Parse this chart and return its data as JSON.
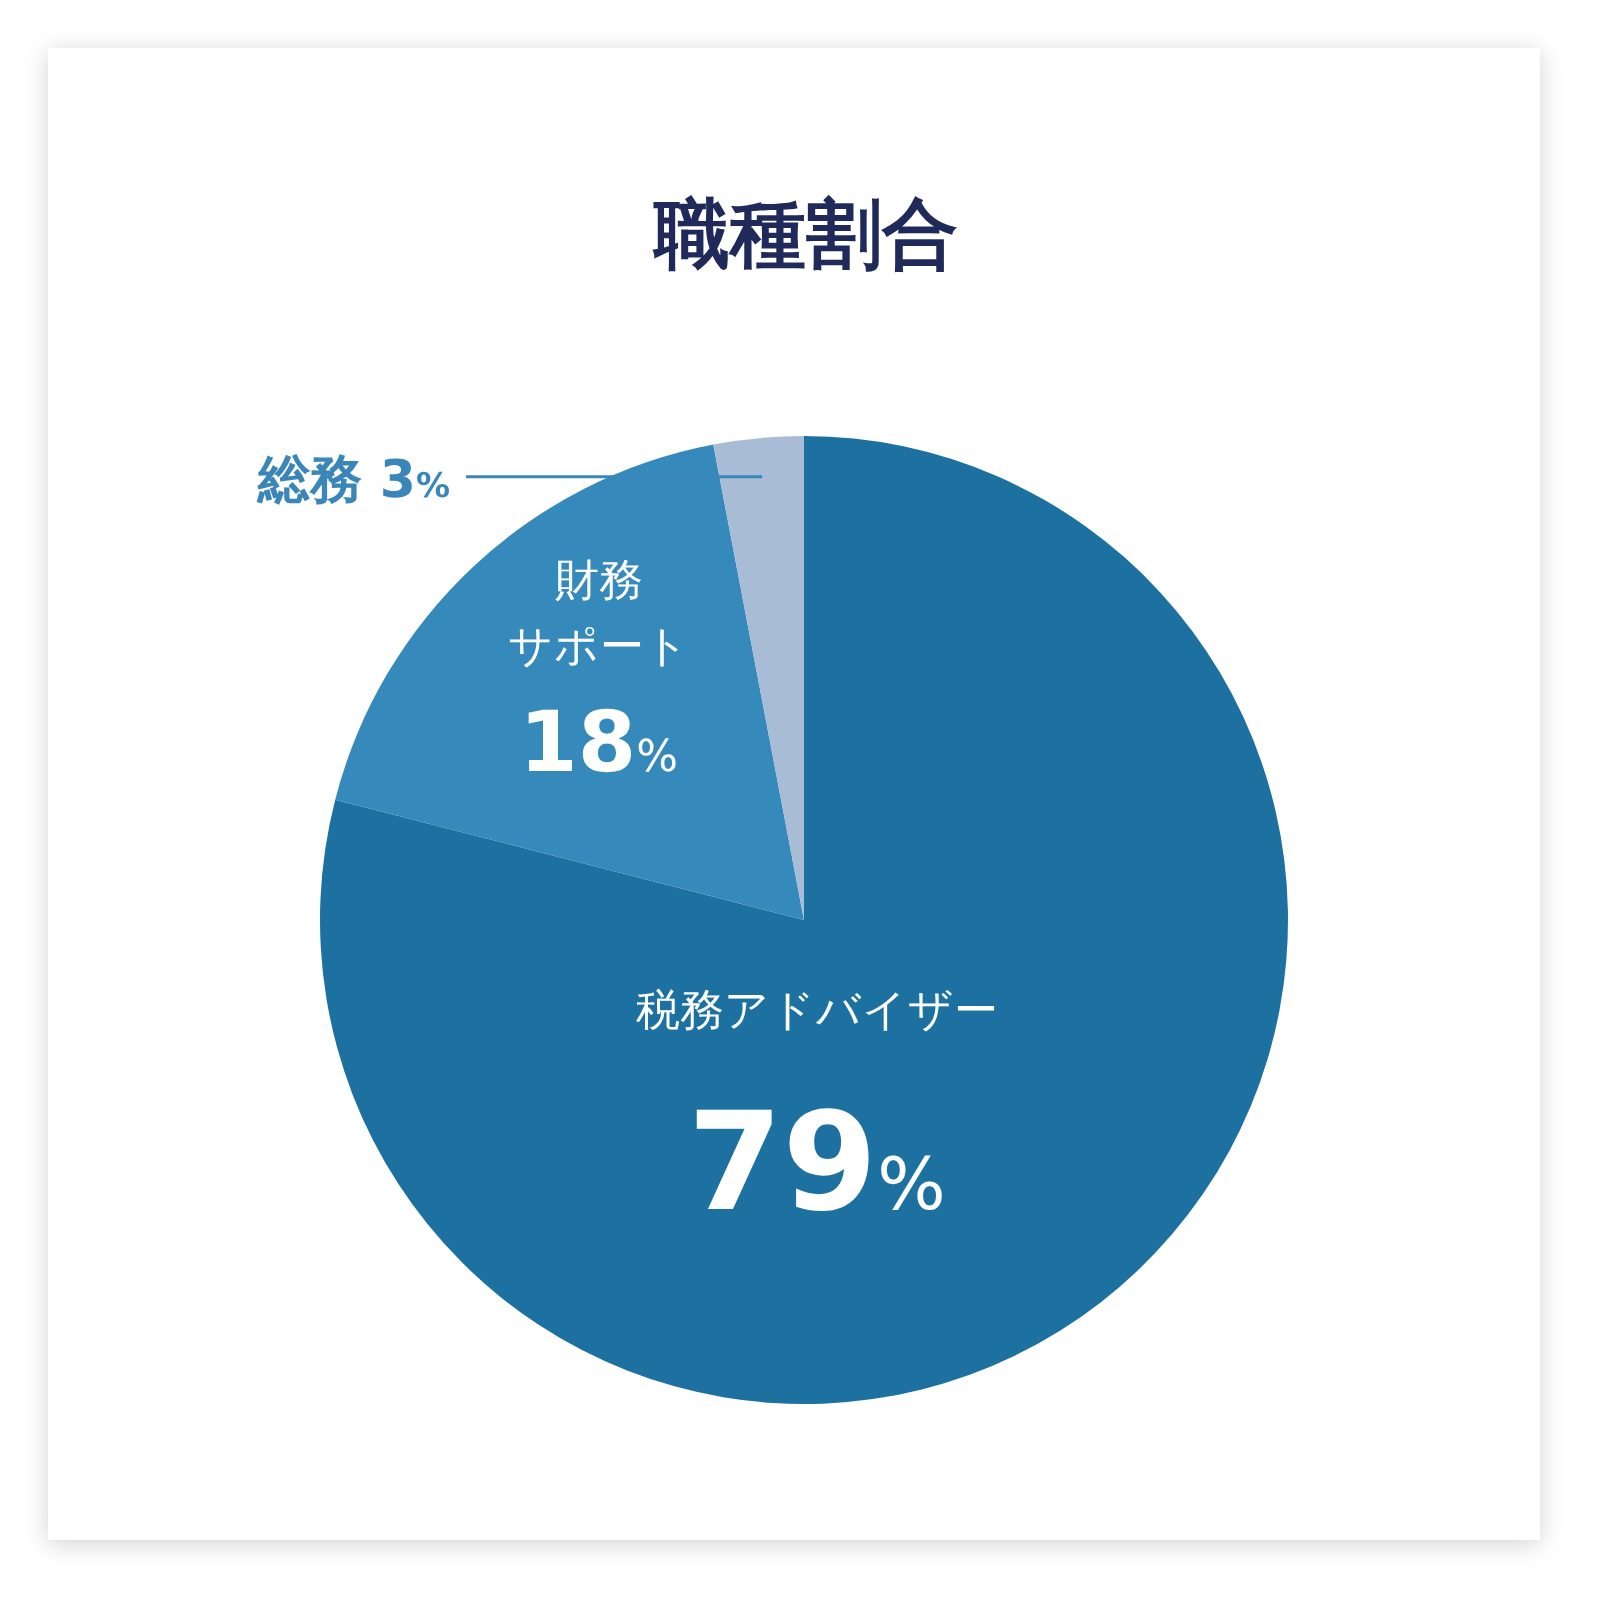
{
  "chart_data": {
    "type": "pie",
    "title": "職種割合",
    "categories": [
      "税務アドバイザー",
      "財務サポート",
      "総務"
    ],
    "values": [
      79,
      18,
      3
    ],
    "colors": [
      "#1d71a1",
      "#3589bb",
      "#a9bcd6"
    ],
    "value_labels": [
      "79%",
      "18%",
      "3%"
    ]
  }
}
